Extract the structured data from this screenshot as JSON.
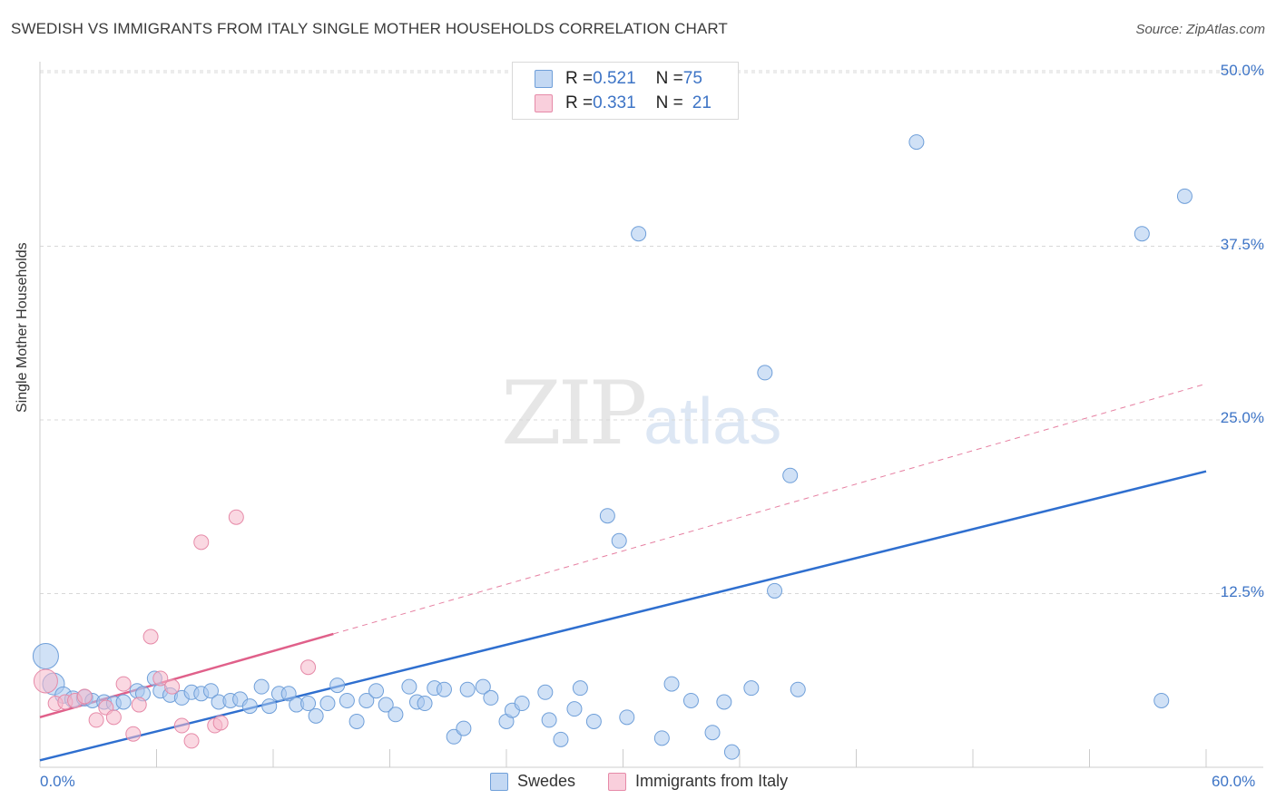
{
  "title": "SWEDISH VS IMMIGRANTS FROM ITALY SINGLE MOTHER HOUSEHOLDS CORRELATION CHART",
  "source": "Source: ZipAtlas.com",
  "watermark": {
    "zip": "ZIP",
    "atlas": "atlas"
  },
  "legend_top": {
    "rows": [
      {
        "r_label": "R = ",
        "r_value": "0.521",
        "n_label": "N = ",
        "n_value": "75",
        "color": "#aac8ee"
      },
      {
        "r_label": "R = ",
        "r_value": "0.331",
        "n_label": "N = ",
        "n_value": "21",
        "color": "#f5b8cb"
      }
    ]
  },
  "colors": {
    "swedes_fill": "#aac8ee",
    "swedes_stroke": "#6f9fd9",
    "swedes_line": "#2f6fcf",
    "italy_fill": "#f5b8cb",
    "italy_stroke": "#e68aa8",
    "italy_line": "#e0608a",
    "grid": "#d8d8d8",
    "axis": "#cccccc",
    "tick_text": "#3d74c6"
  },
  "chart_data": {
    "type": "scatter",
    "title": "SWEDISH VS IMMIGRANTS FROM ITALY SINGLE MOTHER HOUSEHOLDS CORRELATION CHART",
    "xlabel": "",
    "ylabel": "Single Mother Households",
    "xlim": [
      0,
      60
    ],
    "ylim": [
      0,
      51
    ],
    "x_tick_labels": [
      "0.0%",
      "60.0%"
    ],
    "y_tick_labels": [
      "12.5%",
      "25.0%",
      "37.5%",
      "50.0%"
    ],
    "y_ticks": [
      12.5,
      25.0,
      37.5,
      50.0
    ],
    "x_minor_ticks": [
      6,
      12,
      18,
      24,
      30,
      36,
      42,
      48,
      54,
      60
    ],
    "grid": true,
    "legend_position": "bottom",
    "series": [
      {
        "name": "Swedes",
        "r": 0.521,
        "n": 75,
        "trend": {
          "x": [
            0,
            60
          ],
          "y": [
            0.5,
            21.3
          ],
          "style": "solid"
        },
        "points": [
          [
            0.3,
            8.0,
            14
          ],
          [
            0.7,
            6.0,
            12
          ],
          [
            1.2,
            5.2,
            9
          ],
          [
            1.7,
            4.9,
            9
          ],
          [
            2.3,
            5.0,
            9
          ],
          [
            2.7,
            4.8,
            8
          ],
          [
            3.3,
            4.7,
            8
          ],
          [
            3.8,
            4.6,
            8
          ],
          [
            4.3,
            4.7,
            8
          ],
          [
            5.0,
            5.5,
            8
          ],
          [
            5.3,
            5.3,
            8
          ],
          [
            5.9,
            6.4,
            8
          ],
          [
            6.2,
            5.5,
            8
          ],
          [
            6.7,
            5.2,
            8
          ],
          [
            7.3,
            5.0,
            8
          ],
          [
            7.8,
            5.4,
            8
          ],
          [
            8.3,
            5.3,
            8
          ],
          [
            8.8,
            5.5,
            8
          ],
          [
            9.2,
            4.7,
            8
          ],
          [
            9.8,
            4.8,
            8
          ],
          [
            10.3,
            4.9,
            8
          ],
          [
            10.8,
            4.4,
            8
          ],
          [
            11.4,
            5.8,
            8
          ],
          [
            11.8,
            4.4,
            8
          ],
          [
            12.3,
            5.3,
            8
          ],
          [
            12.8,
            5.3,
            8
          ],
          [
            13.2,
            4.5,
            8
          ],
          [
            13.8,
            4.6,
            8
          ],
          [
            14.2,
            3.7,
            8
          ],
          [
            14.8,
            4.6,
            8
          ],
          [
            15.3,
            5.9,
            8
          ],
          [
            15.8,
            4.8,
            8
          ],
          [
            16.3,
            3.3,
            8
          ],
          [
            16.8,
            4.8,
            8
          ],
          [
            17.3,
            5.5,
            8
          ],
          [
            17.8,
            4.5,
            8
          ],
          [
            18.3,
            3.8,
            8
          ],
          [
            19.0,
            5.8,
            8
          ],
          [
            19.4,
            4.7,
            8
          ],
          [
            19.8,
            4.6,
            8
          ],
          [
            20.3,
            5.7,
            8
          ],
          [
            20.8,
            5.6,
            8
          ],
          [
            21.3,
            2.2,
            8
          ],
          [
            21.8,
            2.8,
            8
          ],
          [
            22.0,
            5.6,
            8
          ],
          [
            22.8,
            5.8,
            8
          ],
          [
            23.2,
            5.0,
            8
          ],
          [
            24.0,
            3.3,
            8
          ],
          [
            24.3,
            4.1,
            8
          ],
          [
            24.8,
            4.6,
            8
          ],
          [
            26.0,
            5.4,
            8
          ],
          [
            26.2,
            3.4,
            8
          ],
          [
            26.8,
            2.0,
            8
          ],
          [
            27.5,
            4.2,
            8
          ],
          [
            27.8,
            5.7,
            8
          ],
          [
            28.5,
            3.3,
            8
          ],
          [
            29.2,
            18.1,
            8
          ],
          [
            29.8,
            16.3,
            8
          ],
          [
            30.2,
            3.6,
            8
          ],
          [
            30.8,
            38.4,
            8
          ],
          [
            32.0,
            2.1,
            8
          ],
          [
            32.5,
            6.0,
            8
          ],
          [
            33.5,
            4.8,
            8
          ],
          [
            34.6,
            2.5,
            8
          ],
          [
            35.2,
            4.7,
            8
          ],
          [
            35.6,
            1.1,
            8
          ],
          [
            36.6,
            5.7,
            8
          ],
          [
            37.3,
            28.4,
            8
          ],
          [
            37.8,
            12.7,
            8
          ],
          [
            38.6,
            21.0,
            8
          ],
          [
            39.0,
            5.6,
            8
          ],
          [
            45.1,
            45.0,
            8
          ],
          [
            56.7,
            38.4,
            8
          ],
          [
            57.7,
            4.8,
            8
          ],
          [
            58.9,
            41.1,
            8
          ]
        ]
      },
      {
        "name": "Immigrants from Italy",
        "r": 0.331,
        "n": 21,
        "trend": {
          "x": [
            0,
            15.1
          ],
          "y": [
            3.6,
            9.6
          ],
          "style": "solid",
          "extension": {
            "x": [
              15.1,
              60
            ],
            "y": [
              9.6,
              27.6
            ],
            "style": "dashed"
          }
        },
        "points": [
          [
            0.3,
            6.2,
            13
          ],
          [
            0.8,
            4.6,
            8
          ],
          [
            1.3,
            4.7,
            8
          ],
          [
            1.8,
            4.8,
            8
          ],
          [
            2.3,
            5.1,
            8
          ],
          [
            2.9,
            3.4,
            8
          ],
          [
            3.4,
            4.3,
            8
          ],
          [
            3.8,
            3.6,
            8
          ],
          [
            4.3,
            6.0,
            8
          ],
          [
            4.8,
            2.4,
            8
          ],
          [
            5.1,
            4.5,
            8
          ],
          [
            5.7,
            9.4,
            8
          ],
          [
            6.2,
            6.4,
            8
          ],
          [
            6.8,
            5.8,
            8
          ],
          [
            7.3,
            3.0,
            8
          ],
          [
            7.8,
            1.9,
            8
          ],
          [
            8.3,
            16.2,
            8
          ],
          [
            9.0,
            3.0,
            8
          ],
          [
            9.3,
            3.2,
            8
          ],
          [
            10.1,
            18.0,
            8
          ],
          [
            13.8,
            7.2,
            8
          ]
        ]
      }
    ]
  },
  "legend_bottom": {
    "items": [
      {
        "label": "Swedes",
        "color": "#aac8ee"
      },
      {
        "label": "Immigrants from Italy",
        "color": "#f5b8cb"
      }
    ]
  }
}
